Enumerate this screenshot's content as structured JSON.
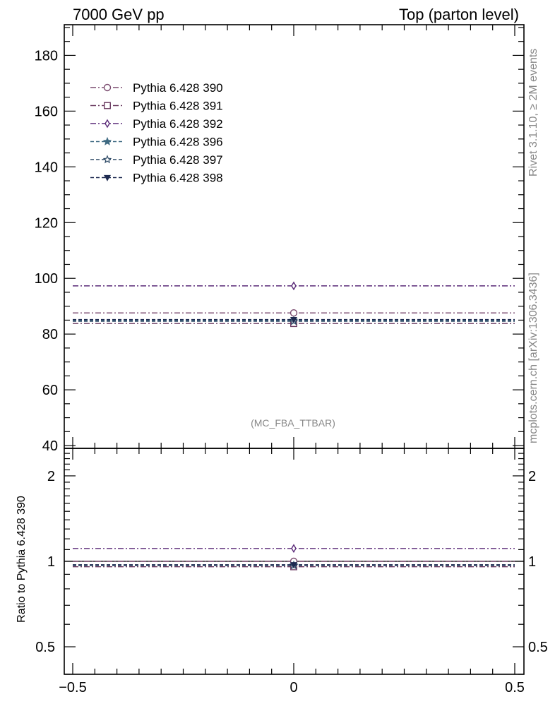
{
  "chart_data": {
    "type": "scatter",
    "header_left": "7000 GeV pp",
    "header_right": "Top (parton level)",
    "side_label_top": "Rivet 3.1.10, ≥ 2M events",
    "side_label_bottom": "mcplots.cern.ch [arXiv:1306.3436]",
    "watermark": "(MC_FBA_TTBAR)",
    "ylabel_ratio": "Ratio to Pythia 6.428 390",
    "xlim": [
      -0.5,
      0.5
    ],
    "xticks": [
      -0.5,
      0,
      0.5
    ],
    "xtick_labels": [
      "−0.5",
      "0",
      "0.5"
    ],
    "main_ylim": [
      39,
      191
    ],
    "main_yticks": [
      40,
      60,
      80,
      100,
      120,
      140,
      160,
      180
    ],
    "main_ytick_labels": [
      "40",
      "60",
      "80",
      "100",
      "120",
      "140",
      "160",
      "180"
    ],
    "ratio_ylim": [
      0.4,
      2.5
    ],
    "ratio_yticks": [
      0.5,
      1,
      2
    ],
    "ratio_ytick_labels": [
      "0.5",
      "1",
      "2"
    ],
    "ratio_log_scale": true,
    "legend_position": "top-left",
    "series": [
      {
        "name": "Pythia 6.428 390",
        "x": 0,
        "value": 87.6,
        "ratio": 1.0,
        "marker": "circle-open",
        "dash": "dashdot",
        "color": "#7a4a6e"
      },
      {
        "name": "Pythia 6.428 391",
        "x": 0,
        "value": 83.8,
        "ratio": 0.957,
        "marker": "square-open",
        "dash": "dashdot",
        "color": "#6a3a60"
      },
      {
        "name": "Pythia 6.428 392",
        "x": 0,
        "value": 97.3,
        "ratio": 1.11,
        "marker": "diamond-open",
        "dash": "dashdot",
        "color": "#5a2a78"
      },
      {
        "name": "Pythia 6.428 396",
        "x": 0,
        "value": 84.9,
        "ratio": 0.969,
        "marker": "star-filled",
        "dash": "dashed",
        "color": "#3f6a82"
      },
      {
        "name": "Pythia 6.428 397",
        "x": 0,
        "value": 84.6,
        "ratio": 0.966,
        "marker": "star-open",
        "dash": "dashed",
        "color": "#2e4a66"
      },
      {
        "name": "Pythia 6.428 398",
        "x": 0,
        "value": 85.2,
        "ratio": 0.973,
        "marker": "triangle-down-filled",
        "dash": "dashed",
        "color": "#1e2a50"
      }
    ]
  }
}
